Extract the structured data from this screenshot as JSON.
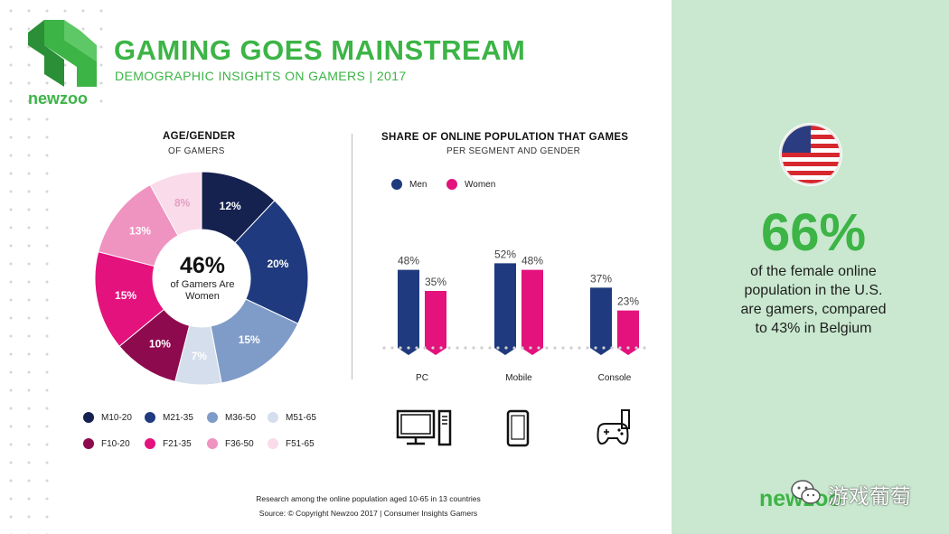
{
  "header": {
    "title": "GAMING GOES MAINSTREAM",
    "subtitle": "DEMOGRAPHIC INSIGHTS ON GAMERS | 2017",
    "logo_text": "newzoo"
  },
  "donut": {
    "title": "AGE/GENDER",
    "subtitle": "OF GAMERS",
    "center_value": "46%",
    "center_label": "of Gamers Are Women"
  },
  "bars": {
    "title": "SHARE OF ONLINE POPULATION THAT GAMES",
    "subtitle": "PER SEGMENT AND GENDER",
    "icons": [
      "desktop-computer-icon",
      "smartphone-icon",
      "gamepad-icon"
    ]
  },
  "colors": {
    "green": "#3cb446",
    "panel": "#c9e8cf",
    "M10-20": "#15214f",
    "M21-35": "#1f3a7e",
    "M36-50": "#7f9bc8",
    "M51-65": "#d4deec",
    "F10-20": "#8e0a4f",
    "F21-35": "#e3127d",
    "F36-50": "#ef93c1",
    "F51-65": "#fadbe9",
    "men": "#1f3a7e",
    "women": "#e3127d"
  },
  "chart_data": [
    {
      "type": "pie",
      "variant": "donut",
      "title": "AGE/GENDER",
      "subtitle": "OF GAMERS",
      "labels": [
        "M10-20",
        "M21-35",
        "M36-50",
        "M51-65",
        "F10-20",
        "F21-35",
        "F36-50",
        "F51-65"
      ],
      "values": [
        12,
        20,
        15,
        7,
        10,
        15,
        13,
        8
      ],
      "value_labels": [
        "12%",
        "20%",
        "15%",
        "7%",
        "10%",
        "15%",
        "13%",
        "8%"
      ],
      "legend": [
        "M10-20",
        "M21-35",
        "M36-50",
        "M51-65",
        "F10-20",
        "F21-35",
        "F36-50",
        "F51-65"
      ],
      "legend_position": "bottom"
    },
    {
      "type": "bar",
      "title": "SHARE OF ONLINE POPULATION THAT GAMES",
      "subtitle": "PER SEGMENT AND GENDER",
      "categories": [
        "PC",
        "Mobile",
        "Console"
      ],
      "series": [
        {
          "name": "Men",
          "values": [
            48,
            52,
            37
          ],
          "labels": [
            "48%",
            "52%",
            "37%"
          ]
        },
        {
          "name": "Women",
          "values": [
            35,
            48,
            23
          ],
          "labels": [
            "35%",
            "48%",
            "23%"
          ]
        }
      ],
      "ylim": [
        0,
        60
      ],
      "legend_position": "top-left",
      "grid": false
    }
  ],
  "callout": {
    "value": "66%",
    "text_lines": [
      "of the female online",
      "population in the U.S.",
      "are gamers, compared",
      "to 43% in Belgium"
    ],
    "flag": "us-flag-icon"
  },
  "footnote": {
    "line1": "Research among the online population aged 10-65 in 13 countries",
    "line2": "Source: © Copyright Newzoo 2017 | Consumer Insights Gamers"
  },
  "branding": {
    "bottom_logo": "newzoo",
    "watermark": "游戏葡萄"
  }
}
